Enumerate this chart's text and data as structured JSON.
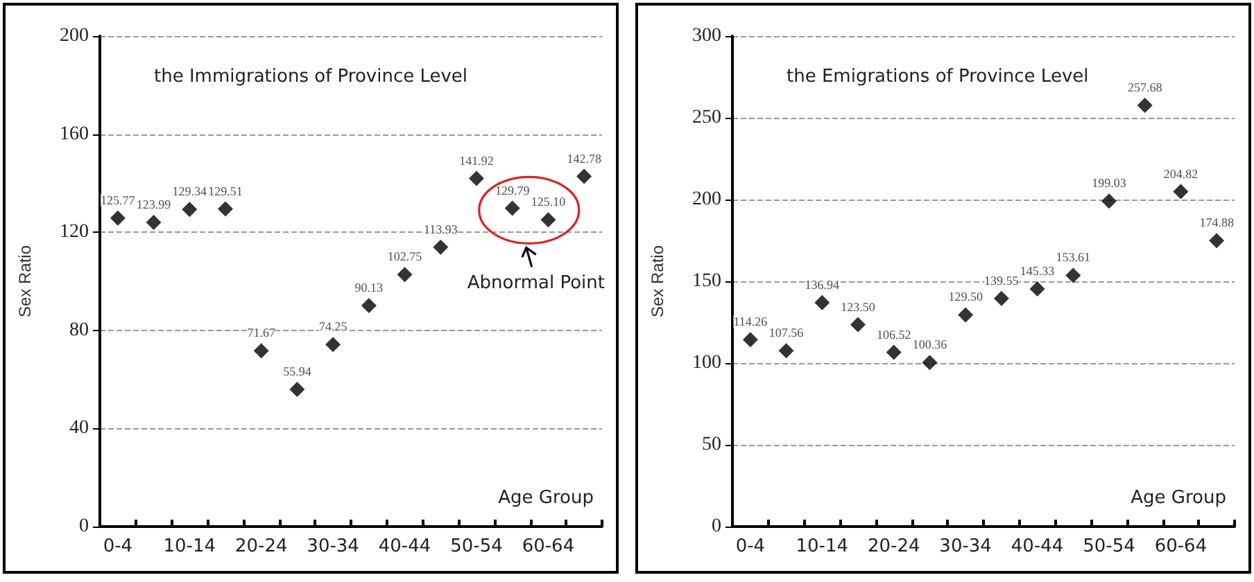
{
  "chart_data": [
    {
      "type": "scatter",
      "title": "the Immigrations of Province Level",
      "xlabel": "Age Group",
      "ylabel": "Sex Ratio",
      "categories": [
        "0-4",
        null,
        "10-14",
        null,
        "20-24",
        null,
        "30-34",
        null,
        "40-44",
        null,
        "50-54",
        null,
        "60-64",
        null
      ],
      "values": [
        125.77,
        123.99,
        129.34,
        129.51,
        71.67,
        55.94,
        74.25,
        90.13,
        102.75,
        113.93,
        141.92,
        129.79,
        125.1,
        142.78
      ],
      "value_labels": [
        "125.77",
        "123.99",
        "129.34",
        "129.51",
        "71.67",
        "55.94",
        "74.25",
        "90.13",
        "102.75",
        "113.93",
        "141.92",
        "129.79",
        "125.10",
        "142.78"
      ],
      "color": "#000000",
      "marker": "diamond",
      "ylim": [
        0,
        200
      ],
      "yticks": [
        0,
        40,
        80,
        120,
        160,
        200
      ],
      "grid": "y",
      "annotations": [
        "Abnormal Point"
      ]
    },
    {
      "type": "scatter",
      "title": "the Emigrations of Province Level",
      "xlabel": "Age Group",
      "ylabel": "Sex Ratio",
      "categories": [
        "0-4",
        null,
        "10-14",
        null,
        "20-24",
        null,
        "30-34",
        null,
        "40-44",
        null,
        "50-54",
        null,
        "60-64",
        null
      ],
      "values": [
        114.26,
        107.56,
        136.94,
        123.5,
        106.52,
        100.36,
        129.5,
        139.55,
        145.33,
        153.61,
        199.03,
        257.68,
        204.82,
        174.88
      ],
      "value_labels": [
        "114.26",
        "107.56",
        "136.94",
        "123.50",
        "106.52",
        "100.36",
        "129.50",
        "139.55",
        "145.33",
        "153.61",
        "199.03",
        "257.68",
        "204.82",
        "174.88"
      ],
      "color": "#000000",
      "marker": "diamond",
      "ylim": [
        0,
        300
      ],
      "yticks": [
        0,
        50,
        100,
        150,
        200,
        250,
        300
      ],
      "grid": "y"
    }
  ]
}
